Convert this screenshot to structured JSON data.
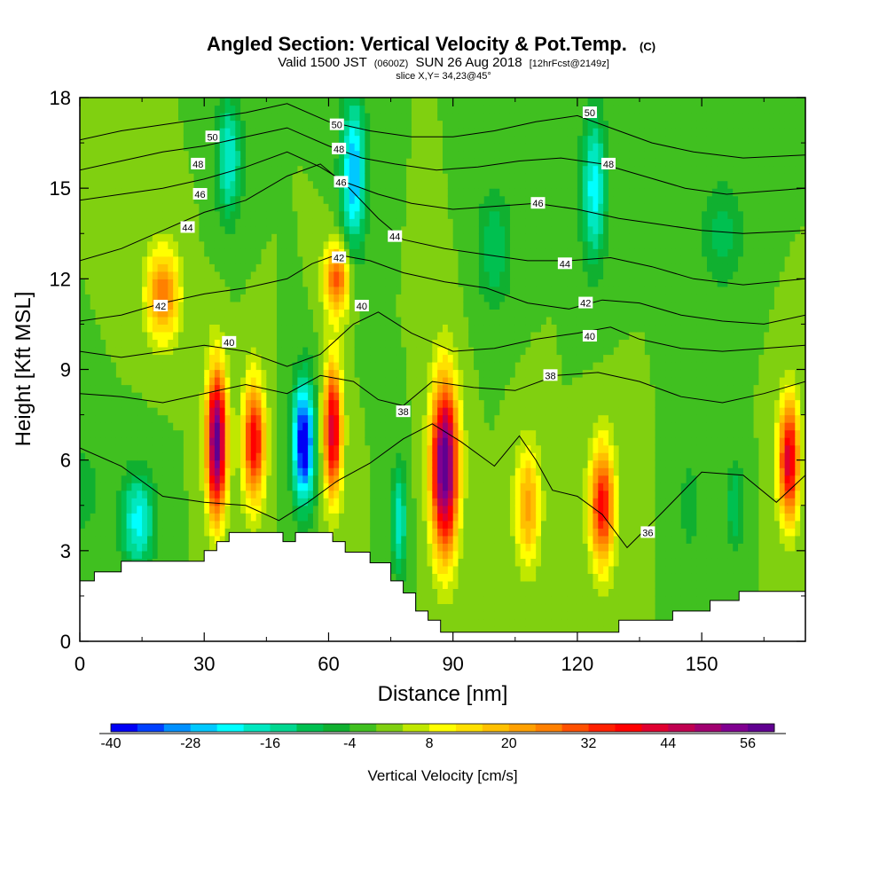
{
  "chart_data": {
    "type": "heatmap",
    "title": "Angled Section: Vertical Velocity & Pot.Temp.",
    "title_suffix": "(C)",
    "subtitle_valid": "Valid 1500 JST",
    "subtitle_utc": "(0600Z)",
    "subtitle_date": "SUN 26 Aug 2018",
    "subtitle_fcst": "[12hrFcst@2149z]",
    "slice": "slice X,Y= 34,23@45°",
    "xlabel": "Distance [nm]",
    "ylabel": "Height [Kft MSL]",
    "xlim": [
      0,
      175
    ],
    "ylim": [
      0,
      18
    ],
    "x_ticks": [
      0,
      30,
      60,
      90,
      120,
      150
    ],
    "y_ticks": [
      0,
      3,
      6,
      9,
      12,
      15,
      18
    ],
    "colorbar": {
      "label": "Vertical Velocity [cm/s]",
      "range": [
        -40,
        60
      ],
      "tick_values": [
        -40,
        -28,
        -16,
        -4,
        8,
        20,
        32,
        44,
        56
      ],
      "colors": [
        "#0000f5",
        "#0040ff",
        "#0090ff",
        "#00c8ff",
        "#00ffff",
        "#00e8c0",
        "#00d890",
        "#00c050",
        "#10b030",
        "#40c020",
        "#80d010",
        "#c0e800",
        "#ffff00",
        "#ffe000",
        "#ffc000",
        "#ffa000",
        "#ff8000",
        "#ff5000",
        "#ff2000",
        "#ff0000",
        "#e00030",
        "#c00050",
        "#a00070",
        "#800090",
        "#600090"
      ]
    },
    "pot_temp_contours": [
      {
        "value": 36,
        "label": "36",
        "points": [
          [
            0,
            6.4
          ],
          [
            10,
            5.8
          ],
          [
            20,
            4.8
          ],
          [
            30,
            4.6
          ],
          [
            40,
            4.5
          ],
          [
            48,
            4.0
          ],
          [
            55,
            4.6
          ],
          [
            62,
            5.3
          ],
          [
            70,
            5.9
          ],
          [
            78,
            6.7
          ],
          [
            85,
            7.2
          ],
          [
            92,
            6.6
          ],
          [
            100,
            5.8
          ],
          [
            106,
            6.8
          ],
          [
            110,
            6.0
          ],
          [
            114,
            5.0
          ],
          [
            120,
            4.8
          ],
          [
            126,
            4.2
          ],
          [
            132,
            3.1
          ],
          [
            140,
            4.2
          ],
          [
            150,
            5.6
          ],
          [
            160,
            5.5
          ],
          [
            168,
            4.6
          ],
          [
            175,
            5.5
          ]
        ]
      },
      {
        "value": 38,
        "label": "38",
        "points": [
          [
            0,
            8.2
          ],
          [
            10,
            8.1
          ],
          [
            20,
            7.9
          ],
          [
            30,
            8.2
          ],
          [
            40,
            8.5
          ],
          [
            50,
            8.2
          ],
          [
            58,
            8.8
          ],
          [
            66,
            8.6
          ],
          [
            72,
            8.0
          ],
          [
            78,
            7.8
          ],
          [
            85,
            8.6
          ],
          [
            95,
            8.4
          ],
          [
            105,
            8.3
          ],
          [
            115,
            8.8
          ],
          [
            125,
            8.9
          ],
          [
            135,
            8.6
          ],
          [
            145,
            8.1
          ],
          [
            155,
            7.9
          ],
          [
            165,
            8.2
          ],
          [
            175,
            8.6
          ]
        ]
      },
      {
        "value": 40,
        "label": "40",
        "points": [
          [
            0,
            9.6
          ],
          [
            10,
            9.4
          ],
          [
            20,
            9.6
          ],
          [
            30,
            9.8
          ],
          [
            40,
            9.6
          ],
          [
            50,
            9.1
          ],
          [
            58,
            9.5
          ],
          [
            66,
            10.5
          ],
          [
            72,
            10.9
          ],
          [
            80,
            10.2
          ],
          [
            90,
            9.6
          ],
          [
            100,
            9.7
          ],
          [
            110,
            10.0
          ],
          [
            120,
            10.2
          ],
          [
            128,
            10.4
          ],
          [
            135,
            10.0
          ],
          [
            145,
            9.7
          ],
          [
            155,
            9.6
          ],
          [
            165,
            9.7
          ],
          [
            175,
            9.8
          ]
        ]
      },
      {
        "value": 42,
        "label": "42",
        "points": [
          [
            0,
            10.6
          ],
          [
            10,
            10.8
          ],
          [
            20,
            11.2
          ],
          [
            30,
            11.5
          ],
          [
            40,
            11.7
          ],
          [
            50,
            12.0
          ],
          [
            56,
            12.5
          ],
          [
            62,
            12.8
          ],
          [
            70,
            12.6
          ],
          [
            78,
            12.2
          ],
          [
            88,
            11.9
          ],
          [
            98,
            11.7
          ],
          [
            108,
            11.2
          ],
          [
            118,
            11.0
          ],
          [
            126,
            11.3
          ],
          [
            135,
            11.2
          ],
          [
            145,
            10.8
          ],
          [
            155,
            10.6
          ],
          [
            165,
            10.5
          ],
          [
            175,
            10.8
          ]
        ]
      },
      {
        "value": 44,
        "label": "44",
        "points": [
          [
            0,
            12.6
          ],
          [
            10,
            13.0
          ],
          [
            20,
            13.6
          ],
          [
            30,
            14.2
          ],
          [
            40,
            14.6
          ],
          [
            50,
            15.4
          ],
          [
            58,
            15.8
          ],
          [
            65,
            15.0
          ],
          [
            72,
            14.0
          ],
          [
            78,
            13.3
          ],
          [
            88,
            13.0
          ],
          [
            98,
            12.8
          ],
          [
            108,
            12.6
          ],
          [
            118,
            12.6
          ],
          [
            128,
            12.7
          ],
          [
            138,
            12.4
          ],
          [
            148,
            12.0
          ],
          [
            160,
            11.8
          ],
          [
            175,
            12.0
          ]
        ]
      },
      {
        "value": 46,
        "label": "46",
        "points": [
          [
            0,
            14.6
          ],
          [
            10,
            14.8
          ],
          [
            20,
            15.0
          ],
          [
            30,
            15.3
          ],
          [
            40,
            15.7
          ],
          [
            50,
            16.2
          ],
          [
            58,
            15.7
          ],
          [
            64,
            15.2
          ],
          [
            72,
            14.8
          ],
          [
            80,
            14.5
          ],
          [
            90,
            14.3
          ],
          [
            100,
            14.4
          ],
          [
            110,
            14.5
          ],
          [
            120,
            14.3
          ],
          [
            130,
            14.0
          ],
          [
            140,
            13.8
          ],
          [
            150,
            13.6
          ],
          [
            160,
            13.5
          ],
          [
            175,
            13.6
          ]
        ]
      },
      {
        "value": 48,
        "label": "48",
        "points": [
          [
            0,
            15.6
          ],
          [
            10,
            15.9
          ],
          [
            20,
            16.2
          ],
          [
            30,
            16.4
          ],
          [
            40,
            16.7
          ],
          [
            50,
            17.0
          ],
          [
            60,
            16.4
          ],
          [
            68,
            16.0
          ],
          [
            76,
            15.8
          ],
          [
            86,
            15.6
          ],
          [
            96,
            15.7
          ],
          [
            106,
            15.9
          ],
          [
            116,
            16.0
          ],
          [
            126,
            15.8
          ],
          [
            136,
            15.4
          ],
          [
            146,
            15.0
          ],
          [
            156,
            14.8
          ],
          [
            175,
            15.0
          ]
        ]
      },
      {
        "value": 50,
        "label": "50",
        "points": [
          [
            0,
            16.6
          ],
          [
            10,
            16.9
          ],
          [
            20,
            17.1
          ],
          [
            30,
            17.3
          ],
          [
            40,
            17.5
          ],
          [
            50,
            17.8
          ],
          [
            60,
            17.2
          ],
          [
            70,
            16.9
          ],
          [
            80,
            16.7
          ],
          [
            90,
            16.7
          ],
          [
            100,
            16.9
          ],
          [
            110,
            17.2
          ],
          [
            120,
            17.4
          ],
          [
            128,
            17.0
          ],
          [
            138,
            16.5
          ],
          [
            148,
            16.2
          ],
          [
            160,
            16.0
          ],
          [
            175,
            16.1
          ]
        ]
      }
    ],
    "contour_labels": [
      {
        "text": "50",
        "x": 32,
        "y": 16.7
      },
      {
        "text": "48",
        "x": 28.5,
        "y": 15.8
      },
      {
        "text": "46",
        "x": 29,
        "y": 14.8
      },
      {
        "text": "44",
        "x": 26,
        "y": 13.7
      },
      {
        "text": "42",
        "x": 19.5,
        "y": 11.1
      },
      {
        "text": "40",
        "x": 36,
        "y": 9.9
      },
      {
        "text": "50",
        "x": 62,
        "y": 17.1
      },
      {
        "text": "48",
        "x": 62.5,
        "y": 16.3
      },
      {
        "text": "46",
        "x": 63,
        "y": 15.2
      },
      {
        "text": "44",
        "x": 76,
        "y": 13.4
      },
      {
        "text": "42",
        "x": 62.5,
        "y": 12.7
      },
      {
        "text": "40",
        "x": 68,
        "y": 11.1
      },
      {
        "text": "38",
        "x": 78,
        "y": 7.6
      },
      {
        "text": "50",
        "x": 123,
        "y": 17.5
      },
      {
        "text": "48",
        "x": 127.5,
        "y": 15.8
      },
      {
        "text": "46",
        "x": 110.5,
        "y": 14.5
      },
      {
        "text": "44",
        "x": 117,
        "y": 12.5
      },
      {
        "text": "42",
        "x": 122,
        "y": 11.2
      },
      {
        "text": "40",
        "x": 123,
        "y": 10.1
      },
      {
        "text": "38",
        "x": 113.5,
        "y": 8.8
      },
      {
        "text": "36",
        "x": 137,
        "y": 3.6
      }
    ],
    "terrain": [
      [
        0,
        2.0
      ],
      [
        3.5,
        2.0
      ],
      [
        3.5,
        2.3
      ],
      [
        10,
        2.3
      ],
      [
        10,
        2.65
      ],
      [
        30,
        2.65
      ],
      [
        30,
        3.0
      ],
      [
        33,
        3.0
      ],
      [
        33,
        3.3
      ],
      [
        36,
        3.3
      ],
      [
        36,
        3.6
      ],
      [
        49,
        3.6
      ],
      [
        49,
        3.3
      ],
      [
        52,
        3.3
      ],
      [
        52,
        3.6
      ],
      [
        61,
        3.6
      ],
      [
        61,
        3.3
      ],
      [
        64,
        3.3
      ],
      [
        64,
        2.95
      ],
      [
        70,
        2.95
      ],
      [
        70,
        2.6
      ],
      [
        75,
        2.6
      ],
      [
        75,
        2.0
      ],
      [
        78,
        2.0
      ],
      [
        78,
        1.6
      ],
      [
        81,
        1.6
      ],
      [
        81,
        1.0
      ],
      [
        84,
        1.0
      ],
      [
        84,
        0.7
      ],
      [
        87,
        0.7
      ],
      [
        87,
        0.3
      ],
      [
        130,
        0.3
      ],
      [
        130,
        0.7
      ],
      [
        143,
        0.7
      ],
      [
        143,
        1.0
      ],
      [
        152,
        1.0
      ],
      [
        152,
        1.35
      ],
      [
        159,
        1.35
      ],
      [
        159,
        1.65
      ],
      [
        175,
        1.65
      ]
    ],
    "w_field": {
      "background": 0,
      "cells": [
        {
          "x": 0,
          "y": 5.0,
          "sx": 5,
          "sy": 1.5,
          "v": -8
        },
        {
          "x": 14,
          "y": 4.0,
          "sx": 4,
          "sy": 1.6,
          "v": -22
        },
        {
          "x": 33,
          "y": 6.6,
          "sx": 2.4,
          "sy": 2.4,
          "v": 60
        },
        {
          "x": 42,
          "y": 6.6,
          "sx": 2.6,
          "sy": 2.0,
          "v": 40
        },
        {
          "x": 54,
          "y": 6.6,
          "sx": 2.6,
          "sy": 2.0,
          "v": -42
        },
        {
          "x": 61,
          "y": 7.0,
          "sx": 2.2,
          "sy": 2.2,
          "v": 44
        },
        {
          "x": 20,
          "y": 11.5,
          "sx": 4,
          "sy": 1.5,
          "v": 28
        },
        {
          "x": 62,
          "y": 12.0,
          "sx": 3,
          "sy": 1.2,
          "v": 30
        },
        {
          "x": 77,
          "y": 4.0,
          "sx": 1.8,
          "sy": 1.8,
          "v": -20
        },
        {
          "x": 88,
          "y": 5.8,
          "sx": 3.2,
          "sy": 2.8,
          "v": 62
        },
        {
          "x": 108,
          "y": 4.5,
          "sx": 3,
          "sy": 2.0,
          "v": 22
        },
        {
          "x": 126,
          "y": 4.5,
          "sx": 3,
          "sy": 2.0,
          "v": 38
        },
        {
          "x": 147,
          "y": 4.5,
          "sx": 2,
          "sy": 1.5,
          "v": -8
        },
        {
          "x": 158,
          "y": 4.5,
          "sx": 2,
          "sy": 1.5,
          "v": -12
        },
        {
          "x": 171,
          "y": 6.0,
          "sx": 2.5,
          "sy": 2.0,
          "v": 44
        },
        {
          "x": 66,
          "y": 15.5,
          "sx": 3,
          "sy": 2.5,
          "v": -28
        },
        {
          "x": 36,
          "y": 16.0,
          "sx": 3,
          "sy": 2.0,
          "v": -20
        },
        {
          "x": 124,
          "y": 15.0,
          "sx": 3,
          "sy": 2.5,
          "v": -22
        },
        {
          "x": 100,
          "y": 13.0,
          "sx": 4,
          "sy": 2.0,
          "v": -12
        },
        {
          "x": 155,
          "y": 13.5,
          "sx": 5,
          "sy": 1.8,
          "v": -10
        }
      ]
    }
  }
}
